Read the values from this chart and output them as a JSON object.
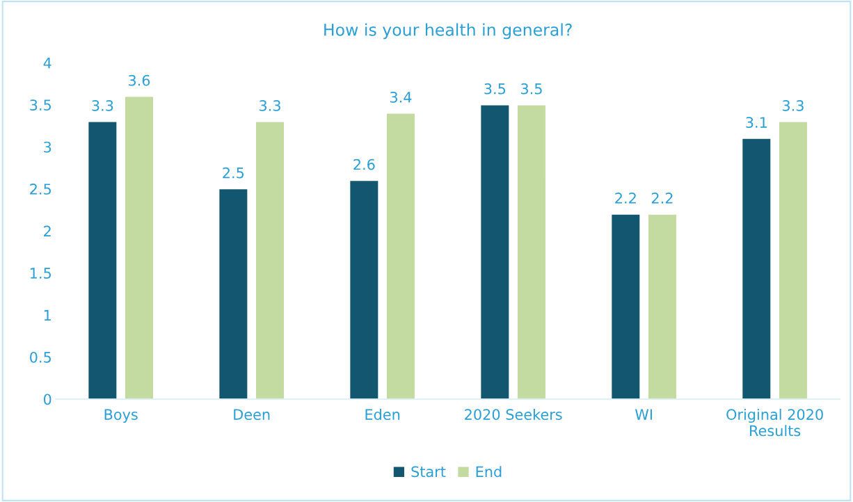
{
  "chart_data": {
    "type": "bar",
    "title": "How is your health in general?",
    "categories": [
      "Boys",
      "Deen",
      "Eden",
      "2020 Seekers",
      "WI",
      "Original 2020\nResults"
    ],
    "series": [
      {
        "name": "Start",
        "color": "#12566f",
        "values": [
          3.3,
          2.5,
          2.6,
          3.5,
          2.2,
          3.1
        ]
      },
      {
        "name": "End",
        "color": "#c3dba1",
        "values": [
          3.6,
          3.3,
          3.4,
          3.5,
          2.2,
          3.3
        ]
      }
    ],
    "ylim": [
      0,
      4
    ],
    "yticks": [
      0,
      0.5,
      1,
      1.5,
      2,
      2.5,
      3,
      3.5,
      4
    ],
    "data_labels": true,
    "grid": false,
    "legend": "bottom"
  }
}
